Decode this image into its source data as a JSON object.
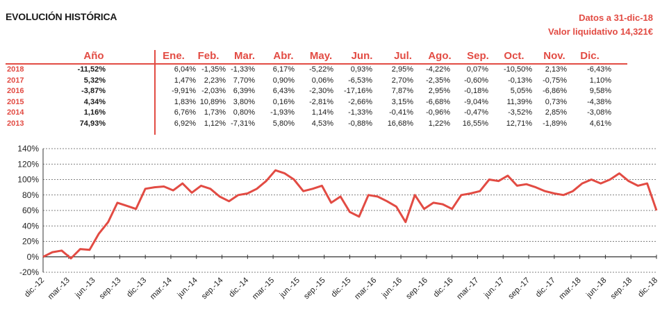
{
  "header": {
    "title": "EVOLUCIÓN HISTÓRICA",
    "date_line": "Datos a 31-dic-18",
    "nav_line": "Valor liquidativo 14,321€"
  },
  "table": {
    "columns": [
      "Año",
      "Ene.",
      "Feb.",
      "Mar.",
      "Abr.",
      "May.",
      "Jun.",
      "Jul.",
      "Ago.",
      "Sep.",
      "Oct.",
      "Nov.",
      "Dic."
    ],
    "rows": [
      {
        "year": "2018",
        "annual": "-11,52%",
        "months": [
          "6,04%",
          "-1,35%",
          "-1,33%",
          "6,17%",
          "-5,22%",
          "0,93%",
          "2,95%",
          "-4,22%",
          "0,07%",
          "-10,50%",
          "2,13%",
          "-6,43%"
        ]
      },
      {
        "year": "2017",
        "annual": "5,32%",
        "months": [
          "1,47%",
          "2,23%",
          "7,70%",
          "0,90%",
          "0,06%",
          "-6,53%",
          "2,70%",
          "-2,35%",
          "-0,60%",
          "-0,13%",
          "-0,75%",
          "1,10%"
        ]
      },
      {
        "year": "2016",
        "annual": "-3,87%",
        "months": [
          "-9,91%",
          "-2,03%",
          "6,39%",
          "6,43%",
          "-2,30%",
          "-17,16%",
          "7,87%",
          "2,95%",
          "-0,18%",
          "5,05%",
          "-6,86%",
          "9,58%"
        ]
      },
      {
        "year": "2015",
        "annual": "4,34%",
        "months": [
          "1,83%",
          "10,89%",
          "3,80%",
          "0,16%",
          "-2,81%",
          "-2,66%",
          "3,15%",
          "-6,68%",
          "-9,04%",
          "11,39%",
          "0,73%",
          "-4,38%"
        ]
      },
      {
        "year": "2014",
        "annual": "1,16%",
        "months": [
          "6,76%",
          "1,73%",
          "0,80%",
          "-1,93%",
          "1,14%",
          "-1,33%",
          "-0,41%",
          "-0,96%",
          "-0,47%",
          "-3,52%",
          "2,85%",
          "-3,08%"
        ]
      },
      {
        "year": "2013",
        "annual": "74,93%",
        "months": [
          "6,92%",
          "1,12%",
          "-7,31%",
          "5,80%",
          "4,53%",
          "-0,88%",
          "16,68%",
          "1,22%",
          "16,55%",
          "12,71%",
          "-1,89%",
          "4,61%"
        ]
      }
    ]
  },
  "chart_data": {
    "type": "line",
    "title": "",
    "xlabel": "",
    "ylabel": "",
    "ylim": [
      -20,
      140
    ],
    "yticks": [
      "-20%",
      "0%",
      "20%",
      "40%",
      "60%",
      "80%",
      "100%",
      "120%",
      "140%"
    ],
    "xticks": [
      "dic.-12",
      "mar.-13",
      "jun.-13",
      "sep.-13",
      "dic.-13",
      "mar.-14",
      "jun.-14",
      "sep.-14",
      "dic.-14",
      "mar.-15",
      "jun.-15",
      "sep.-15",
      "dic.-15",
      "mar.-16",
      "jun.-16",
      "sep.-16",
      "dic.-16",
      "mar.-17",
      "jun.-17",
      "sep.-17",
      "dic.-17",
      "mar.-18",
      "jun.-18",
      "sep.-18",
      "dic.-18"
    ],
    "grid": "horizontal dashed",
    "line_color": "#e24b43",
    "series": [
      {
        "values": [
          0,
          6,
          8,
          -2,
          10,
          9,
          30,
          45,
          70,
          66,
          62,
          88,
          90,
          91,
          86,
          95,
          83,
          92,
          88,
          78,
          72,
          80,
          82,
          88,
          98,
          112,
          108,
          100,
          85,
          88,
          92,
          70,
          78,
          58,
          52,
          80,
          78,
          72,
          65,
          45,
          80,
          62,
          70,
          68,
          62,
          80,
          82,
          85,
          100,
          98,
          105,
          92,
          94,
          90,
          85,
          82,
          80,
          85,
          95,
          100,
          95,
          100,
          108,
          98,
          92,
          95,
          60
        ]
      }
    ]
  }
}
